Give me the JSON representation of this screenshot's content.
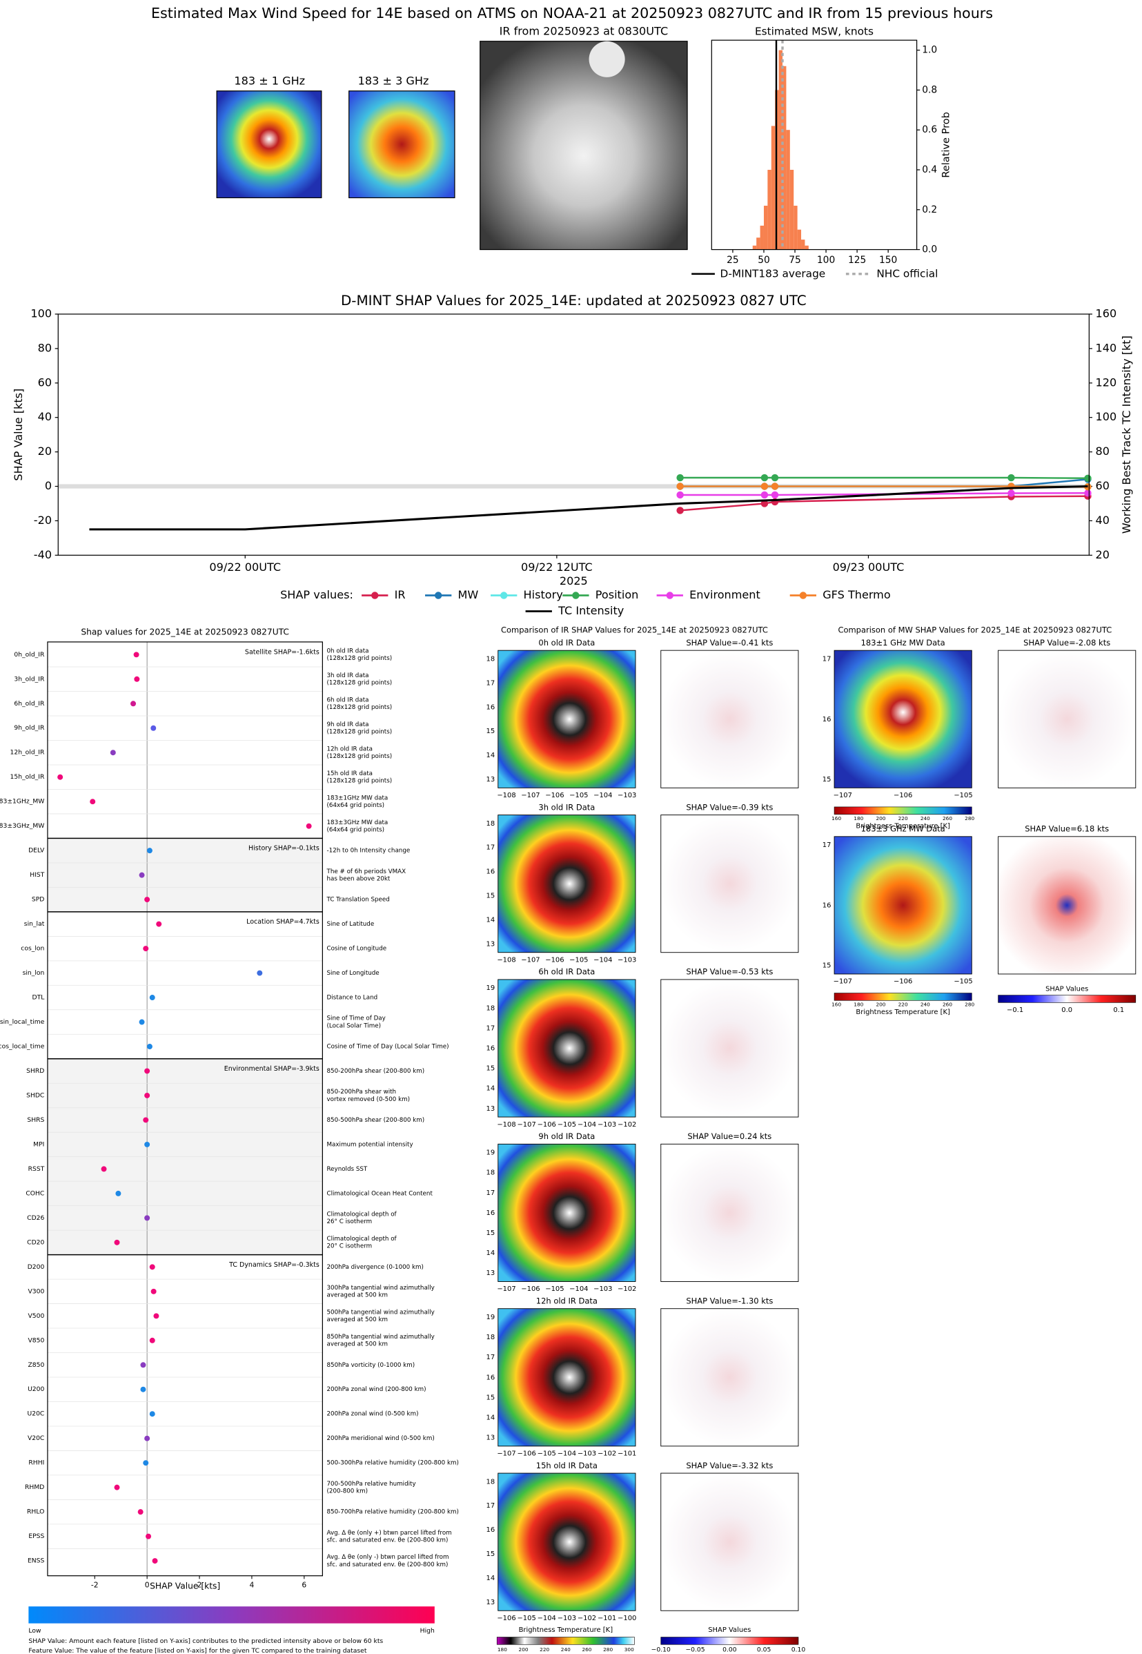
{
  "header": {
    "title": "Estimated Max Wind Speed for 14E based on ATMS on NOAA-21 at 20250923 0827UTC and IR from 15 previous hours"
  },
  "top_panels": {
    "mw1_title": "183 ± 1 GHz",
    "mw3_title": "183 ± 3 GHz",
    "ir_title": "IR from 20250923 at 0830UTC"
  },
  "chart_data": [
    {
      "type": "histogram",
      "title": "Estimated MSW, knots",
      "ylabel": "Relative Prob",
      "bins": [
        41,
        44,
        47,
        50,
        53,
        56,
        59,
        62,
        65,
        68,
        71,
        74,
        77,
        80,
        83,
        86
      ],
      "values": [
        0.02,
        0.06,
        0.12,
        0.22,
        0.4,
        0.62,
        0.8,
        1.0,
        0.92,
        0.6,
        0.4,
        0.22,
        0.1,
        0.05,
        0.02
      ],
      "color": "#f7814f",
      "xlim": [
        8,
        173
      ],
      "ylim": [
        0,
        1.05
      ],
      "xticks": [
        25,
        50,
        75,
        100,
        125,
        150
      ],
      "yticks": [
        {
          "value": 0,
          "label": "0.0"
        },
        {
          "value": 0.2,
          "label": "0.2"
        },
        {
          "value": 0.4,
          "label": "0.4"
        },
        {
          "value": 0.6,
          "label": "0.6"
        },
        {
          "value": 0.8,
          "label": "0.8"
        },
        {
          "value": 1,
          "label": "1.0"
        }
      ],
      "average": {
        "name": "D-MINT183 average",
        "value": 60,
        "color": "#000000"
      },
      "official": {
        "name": "NHC official",
        "value": 65,
        "color": "#aaaaaa"
      }
    },
    {
      "type": "line",
      "title": "D-MINT SHAP Values for 2025_14E: updated at 20250923 0827 UTC",
      "ylabel": "SHAP Value [kts]",
      "y2label": "Working Best Track TC Intensity [kt]",
      "xlabel": "2025",
      "xlim": [
        -7.2,
        32.5
      ],
      "xticks": [
        {
          "value": 0,
          "label": "09/22 00UTC"
        },
        {
          "value": 12,
          "label": "09/22 12UTC"
        },
        {
          "value": 24,
          "label": "09/23 00UTC"
        }
      ],
      "ylim": [
        -40,
        100
      ],
      "yticks": [
        -40,
        -20,
        0,
        20,
        40,
        60,
        80,
        100
      ],
      "y2lim": [
        20,
        160
      ],
      "y2ticks": [
        20,
        40,
        60,
        80,
        100,
        120,
        140,
        160
      ],
      "legend_title": "SHAP values:",
      "series": [
        {
          "name": "IR",
          "color": "#d6204e",
          "marker": "o",
          "x": [
            16.75,
            20.0,
            20.4,
            29.5,
            32.45
          ],
          "values": [
            -14,
            -10,
            -9,
            -6,
            -5.7
          ]
        },
        {
          "name": "MW",
          "color": "#1f77b4",
          "marker": "o",
          "x": [
            16.75,
            20.0,
            20.4,
            29.5,
            32.45
          ],
          "values": [
            0,
            0,
            0,
            0,
            4.1
          ]
        },
        {
          "name": "History",
          "color": "#5ee7e7",
          "marker": "o",
          "x": [
            16.75,
            20.0,
            20.4,
            29.5,
            32.45
          ],
          "values": [
            0,
            0,
            0,
            0,
            -0.1
          ]
        },
        {
          "name": "Position",
          "color": "#34a853",
          "marker": "o",
          "x": [
            16.75,
            20.0,
            20.4,
            29.5,
            32.45
          ],
          "values": [
            5,
            5,
            5,
            5,
            4.7
          ]
        },
        {
          "name": "Environment",
          "color": "#e83ee8",
          "marker": "o",
          "x": [
            16.75,
            20.0,
            20.4,
            29.5,
            32.45
          ],
          "values": [
            -5,
            -5,
            -5,
            -4,
            -3.9
          ]
        },
        {
          "name": "GFS Thermo",
          "color": "#f5812a",
          "marker": "o",
          "x": [
            16.75,
            20.0,
            20.4,
            29.5,
            32.45
          ],
          "values": [
            0,
            0,
            0,
            0,
            -0.3
          ]
        },
        {
          "name": "TC Intensity",
          "color": "#000000",
          "axis": "y2",
          "x": [
            -6,
            0,
            16.75,
            20.4,
            29.5,
            32.45
          ],
          "values": [
            35,
            35,
            50,
            52,
            59,
            60
          ]
        }
      ]
    },
    {
      "type": "dot",
      "title": "Shap values for 2025_14E at 20250923 0827UTC",
      "xlabel": "SHAP Value [kts]",
      "xlim": [
        -3.8,
        6.7
      ],
      "xticks": [
        -2,
        0,
        2,
        4,
        6
      ],
      "colorbar": {
        "low": "Low",
        "high": "High"
      },
      "groups": [
        {
          "label": "Satellite SHAP=-1.6kts",
          "features": [
            {
              "name": "0h_old_IR",
              "value": -0.41,
              "color": "#f0087a",
              "description": [
                "0h old IR data",
                "(128x128 grid points)"
              ]
            },
            {
              "name": "3h_old_IR",
              "value": -0.39,
              "color": "#f0087a",
              "description": [
                "3h old IR data",
                "(128x128 grid points)"
              ]
            },
            {
              "name": "6h_old_IR",
              "value": -0.53,
              "color": "#d01890",
              "description": [
                "6h old IR data",
                "(128x128 grid points)"
              ]
            },
            {
              "name": "9h_old_IR",
              "value": 0.24,
              "color": "#5a5ae6",
              "description": [
                "9h old IR data",
                "(128x128 grid points)"
              ]
            },
            {
              "name": "12h_old_IR",
              "value": -1.3,
              "color": "#8a3cc0",
              "description": [
                "12h old IR data",
                "(128x128 grid points)"
              ]
            },
            {
              "name": "15h_old_IR",
              "value": -3.32,
              "color": "#f0087a",
              "description": [
                "15h old IR data",
                "(128x128 grid points)"
              ]
            },
            {
              "name": "183±1GHz_MW",
              "value": -2.08,
              "color": "#f0087a",
              "description": [
                "183±1GHz MW data",
                "(64x64 grid points)"
              ]
            },
            {
              "name": "183±3GHz_MW",
              "value": 6.18,
              "color": "#f0087a",
              "description": [
                "183±3GHz MW data",
                "(64x64 grid points)"
              ]
            }
          ]
        },
        {
          "label": "History SHAP=-0.1kts",
          "features": [
            {
              "name": "DELV",
              "value": 0.1,
              "color": "#1e88e5",
              "description": [
                "-12h to 0h Intensity change"
              ]
            },
            {
              "name": "HIST",
              "value": -0.2,
              "color": "#8a3cc0",
              "description": [
                "The # of 6h periods VMAX",
                "has been above 20kt"
              ]
            },
            {
              "name": "SPD",
              "value": 0.0,
              "color": "#f0087a",
              "description": [
                "TC Translation Speed"
              ]
            }
          ]
        },
        {
          "label": "Location SHAP=4.7kts",
          "features": [
            {
              "name": "sin_lat",
              "value": 0.45,
              "color": "#f0087a",
              "description": [
                "Sine of Latitude"
              ]
            },
            {
              "name": "cos_lon",
              "value": -0.05,
              "color": "#f0087a",
              "description": [
                "Cosine of Longitude"
              ]
            },
            {
              "name": "sin_lon",
              "value": 4.3,
              "color": "#3d6ee0",
              "description": [
                "Sine of Longitude"
              ]
            },
            {
              "name": "DTL",
              "value": 0.2,
              "color": "#1e88e5",
              "description": [
                "Distance to Land"
              ]
            },
            {
              "name": "sin_local_time",
              "value": -0.2,
              "color": "#1e88e5",
              "description": [
                "Sine of Time of Day",
                "(Local Solar Time)"
              ]
            },
            {
              "name": "cos_local_time",
              "value": 0.1,
              "color": "#1e88e5",
              "description": [
                "Cosine of Time of Day (Local Solar Time)"
              ]
            }
          ]
        },
        {
          "label": "Environmental SHAP=-3.9kts",
          "features": [
            {
              "name": "SHRD",
              "value": 0.0,
              "color": "#f0087a",
              "description": [
                "850-200hPa shear (200-800 km)"
              ]
            },
            {
              "name": "SHDC",
              "value": 0.0,
              "color": "#f0087a",
              "description": [
                "850-200hPa shear with",
                "vortex removed (0-500 km)"
              ]
            },
            {
              "name": "SHRS",
              "value": -0.05,
              "color": "#f0087a",
              "description": [
                "850-500hPa shear (200-800 km)"
              ]
            },
            {
              "name": "MPI",
              "value": 0.0,
              "color": "#1e88e5",
              "description": [
                "Maximum potential intensity"
              ]
            },
            {
              "name": "RSST",
              "value": -1.65,
              "color": "#f0087a",
              "description": [
                "Reynolds SST"
              ]
            },
            {
              "name": "COHC",
              "value": -1.1,
              "color": "#1e88e5",
              "description": [
                "Climatological Ocean Heat Content"
              ]
            },
            {
              "name": "CD26",
              "value": 0.0,
              "color": "#8a3cc0",
              "description": [
                "Climatological depth of",
                "26° C isotherm"
              ]
            },
            {
              "name": "CD20",
              "value": -1.15,
              "color": "#f0087a",
              "description": [
                "Climatological depth of",
                "20° C isotherm"
              ]
            }
          ]
        },
        {
          "label": "TC Dynamics SHAP=-0.3kts",
          "features": [
            {
              "name": "D200",
              "value": 0.2,
              "color": "#f0087a",
              "description": [
                "200hPa divergence (0-1000 km)"
              ]
            },
            {
              "name": "V300",
              "value": 0.25,
              "color": "#f0087a",
              "description": [
                "300hPa tangential wind azimuthally",
                "averaged at 500 km"
              ]
            },
            {
              "name": "V500",
              "value": 0.35,
              "color": "#f0087a",
              "description": [
                "500hPa tangential wind azimuthally",
                "averaged at 500 km"
              ]
            },
            {
              "name": "V850",
              "value": 0.2,
              "color": "#f0087a",
              "description": [
                "850hPa tangential wind azimuthally",
                "averaged at 500 km"
              ]
            },
            {
              "name": "Z850",
              "value": -0.15,
              "color": "#8a3cc0",
              "description": [
                "850hPa vorticity (0-1000 km)"
              ]
            },
            {
              "name": "U200",
              "value": -0.15,
              "color": "#1e88e5",
              "description": [
                "200hPa zonal wind (200-800 km)"
              ]
            },
            {
              "name": "U20C",
              "value": 0.2,
              "color": "#1e88e5",
              "description": [
                "200hPa zonal wind (0-500 km)"
              ]
            },
            {
              "name": "V20C",
              "value": 0.0,
              "color": "#8a3cc0",
              "description": [
                "200hPa meridional wind (0-500 km)"
              ]
            },
            {
              "name": "RHHI",
              "value": -0.05,
              "color": "#1e88e5",
              "description": [
                "500-300hPa relative humidity (200-800 km)"
              ]
            },
            {
              "name": "RHMD",
              "value": -1.15,
              "color": "#f0087a",
              "description": [
                "700-500hPa relative humidity",
                "(200-800 km)"
              ]
            },
            {
              "name": "RHLO",
              "value": -0.25,
              "color": "#f0087a",
              "description": [
                "850-700hPa relative humidity (200-800 km)"
              ]
            },
            {
              "name": "EPSS",
              "value": 0.05,
              "color": "#f0087a",
              "description": [
                "Avg. Δ θe (only +) btwn parcel lifted from",
                "sfc. and saturated env. θe (200-800 km)"
              ]
            },
            {
              "name": "ENSS",
              "value": 0.3,
              "color": "#f0087a",
              "description": [
                "Avg. Δ θe (only -) btwn parcel lifted from",
                "sfc. and saturated env. θe (200-800 km)"
              ]
            }
          ]
        }
      ]
    }
  ],
  "notes": [
    "SHAP Value: Amount each feature [listed on Y-axis] contributes to the predicted intensity above or below 60 kts",
    "Feature Value: The value of the feature [listed on Y-axis] for the given TC compared to the training dataset"
  ],
  "ir_comparison": {
    "title": "Comparison of IR SHAP Values for 2025_14E at 20250923 0827UTC",
    "rows": [
      {
        "ir_title": "0h old IR Data",
        "shap_title": "SHAP Value=-0.41 kts",
        "lat_ticks": [
          13,
          14,
          15,
          16,
          17,
          18
        ],
        "lon_ticks": [
          "−108",
          "−107",
          "−106",
          "−105",
          "−104",
          "−103"
        ]
      },
      {
        "ir_title": "3h old IR Data",
        "shap_title": "SHAP Value=-0.39 kts",
        "lat_ticks": [
          13,
          14,
          15,
          16,
          17,
          18
        ],
        "lon_ticks": [
          "−108",
          "−107",
          "−106",
          "−105",
          "−104",
          "−103"
        ]
      },
      {
        "ir_title": "6h old IR Data",
        "shap_title": "SHAP Value=-0.53 kts",
        "lat_ticks": [
          13,
          14,
          15,
          16,
          17,
          18,
          19
        ],
        "lon_ticks": [
          "−108",
          "−107",
          "−106",
          "−105",
          "−104",
          "−103",
          "−102"
        ]
      },
      {
        "ir_title": "9h old IR Data",
        "shap_title": "SHAP Value=0.24 kts",
        "lat_ticks": [
          13,
          14,
          15,
          16,
          17,
          18,
          19
        ],
        "lon_ticks": [
          "−107",
          "−106",
          "−105",
          "−104",
          "−103",
          "−102"
        ]
      },
      {
        "ir_title": "12h old IR Data",
        "shap_title": "SHAP Value=-1.30 kts",
        "lat_ticks": [
          13,
          14,
          15,
          16,
          17,
          18,
          19
        ],
        "lon_ticks": [
          "−107",
          "−106",
          "−105",
          "−104",
          "−103",
          "−102",
          "−101"
        ]
      },
      {
        "ir_title": "15h old IR Data",
        "shap_title": "SHAP Value=-3.32 kts",
        "lat_ticks": [
          13,
          14,
          15,
          16,
          17,
          18
        ],
        "lon_ticks": [
          "−106",
          "−105",
          "−104",
          "−103",
          "−102",
          "−101",
          "−100"
        ]
      }
    ],
    "bt_colorbar": {
      "label": "Brightness Temperature [K]",
      "ticks": [
        180,
        200,
        220,
        240,
        260,
        280,
        300
      ]
    },
    "shap_colorbar": {
      "label": "SHAP Values",
      "ticks": [
        "−0.10",
        "−0.05",
        "0.00",
        "0.05",
        "0.10"
      ]
    }
  },
  "mw_comparison": {
    "title": "Comparison of MW SHAP Values for 2025_14E at 20250923 0827UTC",
    "panels": [
      {
        "data_title": "183±1 GHz MW Data",
        "shap_title": "SHAP Value=-2.08 kts",
        "lat_ticks": [
          15,
          16,
          17
        ],
        "lon_ticks": [
          "−107",
          "−106",
          "−105"
        ],
        "colorbar": {
          "label": "Brightness Temperature [K]",
          "ticks": [
            160,
            180,
            200,
            220,
            240,
            260,
            280
          ]
        }
      },
      {
        "data_title": "183±3 GHz MW Data",
        "shap_title": "SHAP Value=6.18 kts",
        "lat_ticks": [
          15,
          16,
          17
        ],
        "lon_ticks": [
          "−107",
          "−106",
          "−105"
        ],
        "colorbar": {
          "label": "Brightness Temperature [K]",
          "ticks": [
            160,
            180,
            200,
            220,
            240,
            260,
            280
          ]
        }
      }
    ],
    "shap_colorbar": {
      "label": "SHAP Values",
      "ticks": [
        "−0.1",
        "0.0",
        "0.1"
      ]
    }
  }
}
